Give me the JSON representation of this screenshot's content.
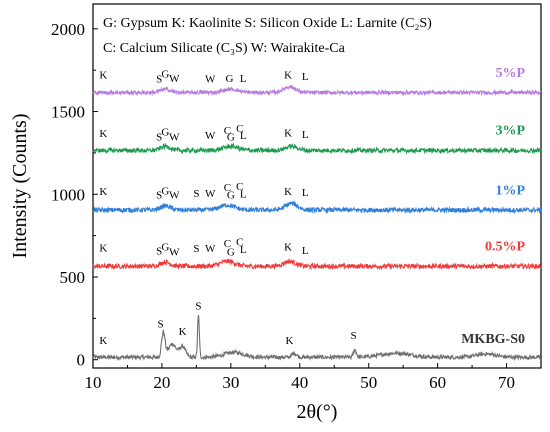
{
  "chart_data": {
    "type": "line",
    "xlabel": "2θ(°)",
    "ylabel": "Intensity (Counts)",
    "xlim": [
      10,
      75
    ],
    "ylim": [
      -50,
      2150
    ],
    "xticks": [
      "10",
      "20",
      "30",
      "40",
      "50",
      "60",
      "70"
    ],
    "yticks": [
      "0",
      "500",
      "1000",
      "1500",
      "2000"
    ],
    "grid": false,
    "legend_lines": [
      "G: Gypsum  K: Kaolinite   S: Silicon Oxide   L: Larnite (C₂S)",
      "C: Calcium Silicate (C₃S)  W: Wairakite-Ca"
    ],
    "series": [
      {
        "name": "MKBG-S0",
        "color": "#707070",
        "baseline": 15,
        "noise": 12,
        "humps": [
          [
            20.2,
            150,
            0.35
          ],
          [
            21.5,
            80,
            0.8
          ],
          [
            23.0,
            65,
            0.6
          ],
          [
            25.3,
            250,
            0.18
          ],
          [
            30.5,
            30,
            2.0
          ],
          [
            39.2,
            25,
            0.5
          ],
          [
            48.0,
            45,
            0.3
          ],
          [
            54.0,
            25,
            3.0
          ],
          [
            67.0,
            20,
            2.0
          ]
        ],
        "peak_labels": [
          {
            "text": "K",
            "x": 11.5,
            "y": 95
          },
          {
            "text": "S",
            "x": 19.8,
            "y": 195
          },
          {
            "text": "K",
            "x": 23.0,
            "y": 150
          },
          {
            "text": "S",
            "x": 25.3,
            "y": 305
          },
          {
            "text": "K",
            "x": 38.5,
            "y": 95
          },
          {
            "text": "S",
            "x": 47.8,
            "y": 125
          }
        ]
      },
      {
        "name": "0.5%P",
        "color": "#ef3b3b",
        "baseline": 565,
        "noise": 14,
        "humps": [
          [
            20.5,
            25,
            1.0
          ],
          [
            29.5,
            30,
            1.5
          ],
          [
            38.5,
            30,
            1.2
          ]
        ],
        "peak_labels": [
          {
            "text": "K",
            "x": 11.5,
            "y": 655
          },
          {
            "text": "S",
            "x": 19.6,
            "y": 635
          },
          {
            "text": "G",
            "x": 20.5,
            "y": 660
          },
          {
            "text": "W",
            "x": 21.8,
            "y": 630
          },
          {
            "text": "S",
            "x": 25.0,
            "y": 650
          },
          {
            "text": "W",
            "x": 27.0,
            "y": 650
          },
          {
            "text": "C",
            "x": 29.5,
            "y": 680
          },
          {
            "text": "G",
            "x": 30.0,
            "y": 630
          },
          {
            "text": "C",
            "x": 31.3,
            "y": 690
          },
          {
            "text": "L",
            "x": 31.8,
            "y": 645
          },
          {
            "text": "K",
            "x": 38.3,
            "y": 660
          },
          {
            "text": "L",
            "x": 40.8,
            "y": 640
          }
        ]
      },
      {
        "name": "1%P",
        "color": "#2f7fdb",
        "baseline": 905,
        "noise": 14,
        "humps": [
          [
            20.5,
            25,
            1.0
          ],
          [
            29.5,
            30,
            1.5
          ],
          [
            38.8,
            40,
            1.2
          ]
        ],
        "peak_labels": [
          {
            "text": "K",
            "x": 11.5,
            "y": 995
          },
          {
            "text": "S",
            "x": 19.6,
            "y": 975
          },
          {
            "text": "G",
            "x": 20.5,
            "y": 1000
          },
          {
            "text": "W",
            "x": 21.8,
            "y": 975
          },
          {
            "text": "S",
            "x": 25.0,
            "y": 985
          },
          {
            "text": "W",
            "x": 27.0,
            "y": 985
          },
          {
            "text": "C",
            "x": 29.5,
            "y": 1020
          },
          {
            "text": "G",
            "x": 30.0,
            "y": 975
          },
          {
            "text": "C",
            "x": 31.3,
            "y": 1025
          },
          {
            "text": "L",
            "x": 31.8,
            "y": 980
          },
          {
            "text": "K",
            "x": 38.3,
            "y": 995
          },
          {
            "text": "L",
            "x": 40.8,
            "y": 990
          }
        ]
      },
      {
        "name": "3%P",
        "color": "#1e9a50",
        "baseline": 1265,
        "noise": 13,
        "humps": [
          [
            20.5,
            25,
            1.0
          ],
          [
            30.0,
            25,
            1.5
          ],
          [
            38.8,
            25,
            1.2
          ]
        ],
        "peak_labels": [
          {
            "text": "K",
            "x": 11.5,
            "y": 1345
          },
          {
            "text": "S",
            "x": 19.6,
            "y": 1325
          },
          {
            "text": "G",
            "x": 20.5,
            "y": 1355
          },
          {
            "text": "W",
            "x": 21.8,
            "y": 1325
          },
          {
            "text": "W",
            "x": 27.0,
            "y": 1335
          },
          {
            "text": "C",
            "x": 29.5,
            "y": 1365
          },
          {
            "text": "G",
            "x": 30.0,
            "y": 1325
          },
          {
            "text": "C",
            "x": 31.3,
            "y": 1375
          },
          {
            "text": "L",
            "x": 31.8,
            "y": 1335
          },
          {
            "text": "K",
            "x": 38.3,
            "y": 1350
          },
          {
            "text": "L",
            "x": 40.8,
            "y": 1340
          }
        ]
      },
      {
        "name": "5%P",
        "color": "#b77cdf",
        "baseline": 1615,
        "noise": 11,
        "humps": [
          [
            20.5,
            20,
            1.0
          ],
          [
            30.0,
            20,
            1.5
          ],
          [
            38.5,
            35,
            1.2
          ]
        ],
        "peak_labels": [
          {
            "text": "K",
            "x": 11.5,
            "y": 1700
          },
          {
            "text": "S",
            "x": 19.6,
            "y": 1675
          },
          {
            "text": "G",
            "x": 20.5,
            "y": 1705
          },
          {
            "text": "W",
            "x": 21.8,
            "y": 1680
          },
          {
            "text": "W",
            "x": 27.0,
            "y": 1675
          },
          {
            "text": "G",
            "x": 29.8,
            "y": 1680
          },
          {
            "text": "L",
            "x": 31.8,
            "y": 1680
          },
          {
            "text": "K",
            "x": 38.3,
            "y": 1700
          },
          {
            "text": "L",
            "x": 40.8,
            "y": 1690
          }
        ]
      }
    ]
  }
}
